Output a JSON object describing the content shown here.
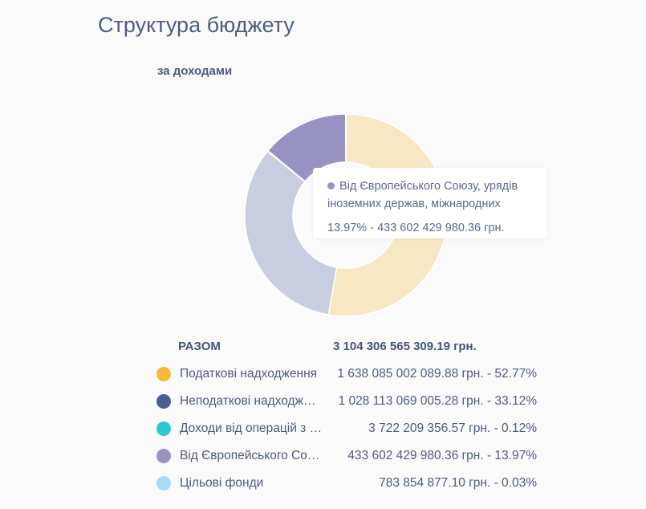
{
  "header": {
    "title": "Структура бюджету",
    "subtitle": "за доходами"
  },
  "tooltip": {
    "name_line1": "Від Європейського Союзу, урядів",
    "name_line2": "іноземних держав, міжнародних",
    "value": "13.97% - 433 602 429 980.36 грн.",
    "dot_color": "#9893c3"
  },
  "summary": {
    "label": "РАЗОМ",
    "value": "3 104 306 565 309.19 грн."
  },
  "legend": [
    {
      "name": "Податкові надходження",
      "value": "1 638 085 002 089.88 грн. - 52.77%",
      "color": "#f8b93a"
    },
    {
      "name": "Неподаткові надходження",
      "value": "1 028 113 069 005.28 грн. - 33.12%",
      "color": "#4d5e90"
    },
    {
      "name": "Доходи від операцій з капіталом",
      "value": "3 722 209 356.57 грн. -   0.12%",
      "color": "#2cc8d4"
    },
    {
      "name": "Від Європейського Союзу, урядів іноземних держав, міжнародних",
      "value": "433 602 429 980.36 грн. - 13.97%",
      "color": "#9893c3"
    },
    {
      "name": "Цільові фонди",
      "value": "783 854 877.10 грн. -   0.03%",
      "color": "#a7dcf7"
    }
  ],
  "chart_data": {
    "type": "pie",
    "title": "Структура бюджету",
    "subtitle": "за доходами",
    "donut": true,
    "categories": [
      "Податкові надходження",
      "Неподаткові надходження",
      "Доходи від операцій з капіталом",
      "Від Європейського Союзу, урядів іноземних держав, міжнародних",
      "Цільові фонди"
    ],
    "values": [
      52.77,
      33.12,
      0.12,
      13.97,
      0.03
    ],
    "unit": "%",
    "amounts": [
      1638085002089.88,
      1028113069005.28,
      3722209356.57,
      433602429980.36,
      783854877.1
    ],
    "slice_colors": [
      "#f7e7c4",
      "#c8cde0",
      "#2cc8d4",
      "#9893c3",
      "#a7dcf7"
    ],
    "legend_position": "bottom"
  }
}
